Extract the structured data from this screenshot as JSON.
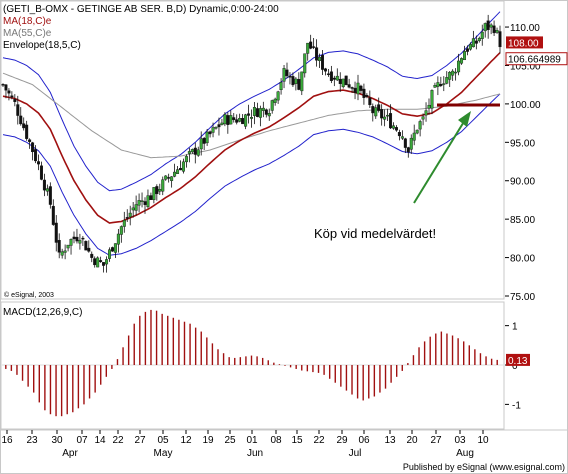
{
  "header": {
    "line1": "(GETI_B-OMX - GETINGE AB SER. B,D) Dynamic,0:00-24:00",
    "line2": "MA(18,C)e",
    "line3": "MA(55,C)e",
    "line4": "Envelope(18,5,C)"
  },
  "copyright": "© eSignal, 2003",
  "footer": "Published by eSignal (www.esignal.com)",
  "annotation": "Köp vid medelvärdet!",
  "colors": {
    "up_candle": "#3aa83a",
    "down_candle": "#111111",
    "ma18": "#a01010",
    "ma55": "#999999",
    "envelope": "#2222cc",
    "macd": "#a01010",
    "arrow": "#2e8b2e",
    "support": "#800000",
    "frame": "#c8c8c8"
  },
  "chart_data": [
    {
      "type": "candlestick",
      "title": "(GETI_B-OMX - GETINGE AB SER. B,D) Dynamic,0:00-24:00",
      "y_ticks": [
        75,
        80,
        85,
        90,
        95,
        100,
        105,
        110
      ],
      "y_tick_labels": [
        "75.00",
        "80.00",
        "85.00",
        "90.00",
        "95.00",
        "100.00",
        "105.00",
        "110.00"
      ],
      "ylim": [
        75,
        113
      ],
      "x_tick_labels": [
        "16",
        "23",
        "30",
        "07",
        "14",
        "22",
        "27",
        "05",
        "12",
        "19",
        "25",
        "01",
        "08",
        "15",
        "22",
        "29",
        "06",
        "13",
        "20",
        "27",
        "03",
        "10"
      ],
      "month_labels": [
        "Apr",
        "May",
        "Jun",
        "Jul",
        "Aug"
      ],
      "last_price_label": "108.00",
      "ma18_last_label": "106.664989",
      "support_level": 100,
      "grid": false,
      "series": [
        {
          "name": "MA(18,C)e"
        },
        {
          "name": "MA(55,C)e"
        },
        {
          "name": "Envelope(18,5,C)"
        }
      ],
      "close_path": [
        [
          0,
          102.5
        ],
        [
          4,
          100
        ],
        [
          8,
          96
        ],
        [
          12,
          92
        ],
        [
          16,
          87
        ],
        [
          19,
          80
        ],
        [
          22,
          82
        ],
        [
          26,
          83
        ],
        [
          30,
          80
        ],
        [
          34,
          79
        ],
        [
          40,
          84
        ],
        [
          45,
          87
        ],
        [
          50,
          88
        ],
        [
          55,
          90
        ],
        [
          60,
          92
        ],
        [
          65,
          94
        ],
        [
          70,
          96
        ],
        [
          75,
          98
        ],
        [
          80,
          98
        ],
        [
          85,
          99
        ],
        [
          90,
          99.5
        ],
        [
          95,
          104
        ],
        [
          100,
          102.5
        ],
        [
          103,
          108
        ],
        [
          106,
          106
        ],
        [
          110,
          104
        ],
        [
          115,
          103
        ],
        [
          120,
          102
        ],
        [
          125,
          99
        ],
        [
          130,
          98
        ],
        [
          135,
          96
        ],
        [
          137,
          94
        ],
        [
          140,
          97
        ],
        [
          142,
          98
        ],
        [
          145,
          101
        ],
        [
          148,
          103
        ],
        [
          152,
          104
        ],
        [
          156,
          107
        ],
        [
          160,
          108
        ],
        [
          163,
          110
        ],
        [
          166,
          110
        ],
        [
          168,
          108
        ]
      ],
      "ma18_path": [
        [
          0,
          101
        ],
        [
          4,
          100.7
        ],
        [
          8,
          100
        ],
        [
          12,
          98.8
        ],
        [
          16,
          96.7
        ],
        [
          20,
          93.2
        ],
        [
          24,
          90
        ],
        [
          28,
          87.5
        ],
        [
          32,
          85.5
        ],
        [
          36,
          84.5
        ],
        [
          40,
          84.7
        ],
        [
          45,
          85.5
        ],
        [
          50,
          86.5
        ],
        [
          55,
          87.8
        ],
        [
          60,
          89
        ],
        [
          65,
          90.5
        ],
        [
          70,
          92.3
        ],
        [
          75,
          94
        ],
        [
          80,
          95.2
        ],
        [
          85,
          96.2
        ],
        [
          90,
          97
        ],
        [
          95,
          98.2
        ],
        [
          100,
          99.5
        ],
        [
          105,
          101
        ],
        [
          110,
          101.6
        ],
        [
          115,
          101.8
        ],
        [
          120,
          101.4
        ],
        [
          125,
          100.7
        ],
        [
          130,
          99.8
        ],
        [
          135,
          98.7
        ],
        [
          140,
          98.4
        ],
        [
          145,
          98.8
        ],
        [
          150,
          100
        ],
        [
          155,
          101.5
        ],
        [
          160,
          103.5
        ],
        [
          165,
          105.5
        ],
        [
          168,
          106.66
        ]
      ],
      "ma55_path": [
        [
          0,
          104
        ],
        [
          10,
          102.5
        ],
        [
          20,
          99.5
        ],
        [
          30,
          96.5
        ],
        [
          40,
          94
        ],
        [
          50,
          93
        ],
        [
          60,
          93.2
        ],
        [
          70,
          94
        ],
        [
          80,
          95.3
        ],
        [
          90,
          96.5
        ],
        [
          100,
          97.5
        ],
        [
          110,
          98.5
        ],
        [
          120,
          99.1
        ],
        [
          130,
          99.3
        ],
        [
          140,
          99.3
        ],
        [
          150,
          99.7
        ],
        [
          160,
          100.5
        ],
        [
          168,
          101.3
        ]
      ],
      "envelope_upper_path": [
        [
          0,
          106
        ],
        [
          4,
          105.7
        ],
        [
          8,
          105
        ],
        [
          12,
          103.8
        ],
        [
          16,
          101.5
        ],
        [
          20,
          97.9
        ],
        [
          24,
          94.5
        ],
        [
          28,
          91.9
        ],
        [
          32,
          89.8
        ],
        [
          36,
          88.7
        ],
        [
          40,
          88.9
        ],
        [
          45,
          89.8
        ],
        [
          50,
          90.8
        ],
        [
          55,
          92.2
        ],
        [
          60,
          93.4
        ],
        [
          65,
          95
        ],
        [
          70,
          96.9
        ],
        [
          75,
          98.7
        ],
        [
          80,
          100
        ],
        [
          85,
          101
        ],
        [
          90,
          101.9
        ],
        [
          95,
          103.1
        ],
        [
          100,
          104.5
        ],
        [
          105,
          106
        ],
        [
          110,
          106.7
        ],
        [
          115,
          106.9
        ],
        [
          120,
          106.5
        ],
        [
          125,
          105.7
        ],
        [
          130,
          104.8
        ],
        [
          135,
          103.6
        ],
        [
          140,
          103.3
        ],
        [
          145,
          103.7
        ],
        [
          150,
          105
        ],
        [
          155,
          106.6
        ],
        [
          160,
          108.7
        ],
        [
          165,
          110.8
        ],
        [
          168,
          112
        ]
      ],
      "envelope_lower_path": [
        [
          0,
          96
        ],
        [
          4,
          95.7
        ],
        [
          8,
          95
        ],
        [
          12,
          93.9
        ],
        [
          16,
          91.9
        ],
        [
          20,
          88.5
        ],
        [
          24,
          85.5
        ],
        [
          28,
          83.1
        ],
        [
          32,
          81.2
        ],
        [
          36,
          80.3
        ],
        [
          40,
          80.5
        ],
        [
          45,
          81.2
        ],
        [
          50,
          82.2
        ],
        [
          55,
          83.4
        ],
        [
          60,
          84.6
        ],
        [
          65,
          86
        ],
        [
          70,
          87.7
        ],
        [
          75,
          89.3
        ],
        [
          80,
          90.4
        ],
        [
          85,
          91.4
        ],
        [
          90,
          92.2
        ],
        [
          95,
          93.3
        ],
        [
          100,
          94.5
        ],
        [
          105,
          96
        ],
        [
          110,
          96.5
        ],
        [
          115,
          96.7
        ],
        [
          120,
          96.3
        ],
        [
          125,
          95.7
        ],
        [
          130,
          94.8
        ],
        [
          135,
          93.8
        ],
        [
          140,
          93.5
        ],
        [
          145,
          93.9
        ],
        [
          150,
          95
        ],
        [
          155,
          96.4
        ],
        [
          160,
          98.3
        ],
        [
          165,
          100.2
        ],
        [
          168,
          101.3
        ]
      ]
    },
    {
      "type": "bar",
      "title": "MACD(12,26,9,C)",
      "y_ticks": [
        -1,
        0,
        1
      ],
      "y_tick_labels": [
        "-1",
        "0",
        "1"
      ],
      "ylim": [
        -1.6,
        1.55
      ],
      "last_value_label": "0.13",
      "values": [
        -0.1,
        -0.15,
        -0.25,
        -0.4,
        -0.55,
        -0.7,
        -0.95,
        -1.15,
        -1.25,
        -1.3,
        -1.3,
        -1.25,
        -1.2,
        -1.1,
        -1,
        -0.85,
        -0.7,
        -0.5,
        -0.3,
        -0.1,
        0.15,
        0.45,
        0.75,
        1.05,
        1.25,
        1.35,
        1.4,
        1.38,
        1.3,
        1.25,
        1.2,
        1.15,
        1.1,
        1.05,
        0.95,
        0.85,
        0.7,
        0.55,
        0.4,
        0.3,
        0.2,
        0.18,
        0.2,
        0.22,
        0.24,
        0.22,
        0.18,
        0.12,
        0.06,
        0.02,
        -0.02,
        -0.06,
        -0.1,
        -0.14,
        -0.16,
        -0.18,
        -0.2,
        -0.25,
        -0.35,
        -0.45,
        -0.55,
        -0.65,
        -0.75,
        -0.85,
        -0.9,
        -0.85,
        -0.8,
        -0.7,
        -0.6,
        -0.45,
        -0.3,
        -0.15,
        0.05,
        0.25,
        0.45,
        0.6,
        0.72,
        0.8,
        0.85,
        0.8,
        0.75,
        0.68,
        0.6,
        0.5,
        0.4,
        0.3,
        0.22,
        0.16,
        0.13
      ]
    }
  ]
}
